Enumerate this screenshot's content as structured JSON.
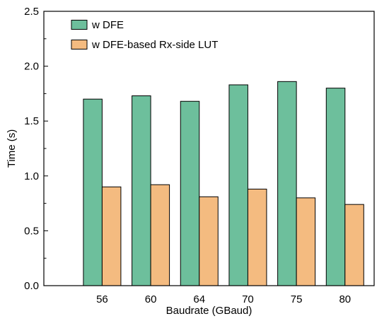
{
  "chart_data": {
    "type": "bar",
    "categories": [
      "56",
      "60",
      "64",
      "70",
      "75",
      "80"
    ],
    "series": [
      {
        "name": "w DFE",
        "values": [
          1.7,
          1.73,
          1.68,
          1.83,
          1.86,
          1.8
        ],
        "color": "#6dbf9c"
      },
      {
        "name": "w DFE-based Rx-side LUT",
        "values": [
          0.9,
          0.92,
          0.81,
          0.88,
          0.8,
          0.74
        ],
        "color": "#f4bb80"
      }
    ],
    "xlabel": "Baudrate (GBaud)",
    "ylabel": "Time (s)",
    "ylim": [
      0,
      2.5
    ],
    "yticks": [
      "0.0",
      "0.5",
      "1.0",
      "1.5",
      "2.0",
      "2.5"
    ],
    "grid": false,
    "legend_position": "top-left"
  }
}
